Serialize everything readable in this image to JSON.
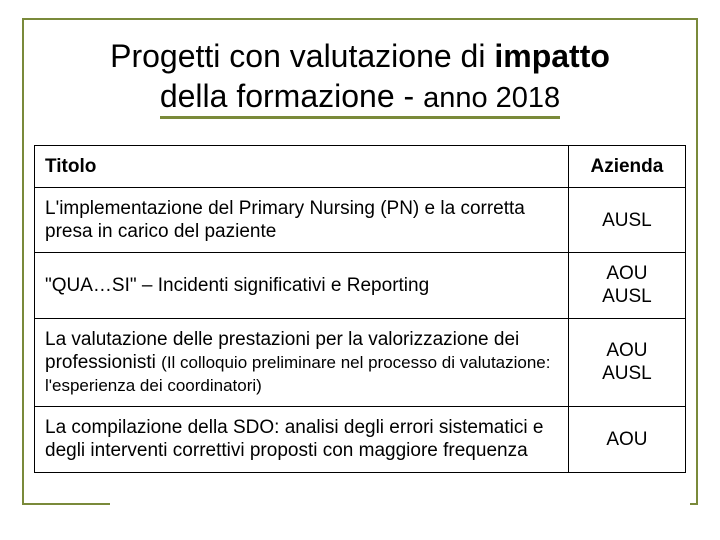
{
  "title": {
    "line1_plain": "Progetti con valutazione di ",
    "line1_bold": "impatto",
    "line2_plain": "della formazione - ",
    "line2_small": "anno 2018"
  },
  "table": {
    "headers": {
      "col1": "Titolo",
      "col2": "Azienda"
    },
    "rows": [
      {
        "title_main": "L'implementazione del  Primary Nursing (PN) e la corretta presa in carico del paziente",
        "title_sub": "",
        "azienda": "AUSL"
      },
      {
        "title_main": "\"QUA…SI\" – Incidenti significativi e Reporting",
        "title_sub": "",
        "azienda": "AOU\nAUSL"
      },
      {
        "title_main": "La valutazione delle prestazioni per la valorizzazione dei professionisti ",
        "title_sub": "(Il colloquio preliminare nel processo di valutazione: l'esperienza dei coordinatori)",
        "azienda": "AOU\nAUSL"
      },
      {
        "title_main": "La compilazione della SDO: analisi degli errori sistematici e degli interventi correttivi proposti con maggiore frequenza",
        "title_sub": "",
        "azienda": "AOU"
      }
    ]
  },
  "style": {
    "accent_color": "#7a8a3a",
    "border_color": "#000000",
    "background": "#ffffff",
    "title_fontsize": 32,
    "title_small_fontsize": 29,
    "cell_fontsize": 19,
    "subnote_fontsize": 17,
    "col_widths_pct": [
      82,
      18
    ]
  }
}
